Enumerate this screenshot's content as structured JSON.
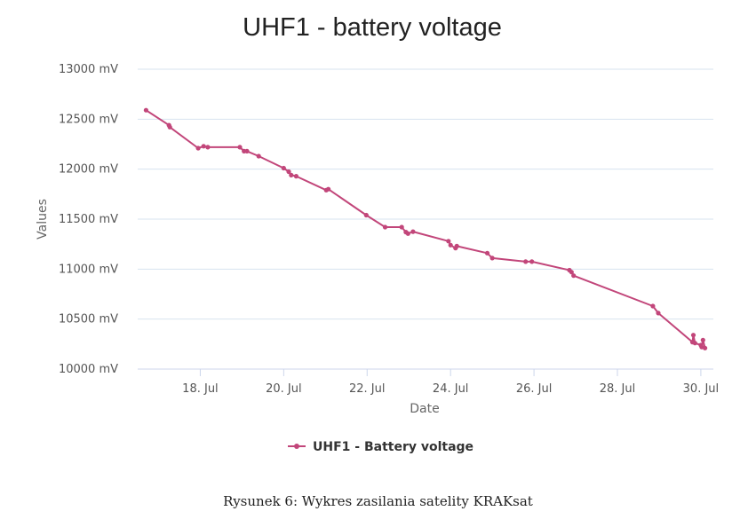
{
  "chart_data": {
    "type": "line",
    "title": "UHF1 - battery voltage",
    "xlabel": "Date",
    "ylabel": "Values",
    "ylim": [
      10000,
      13000
    ],
    "yticks": [
      10000,
      10500,
      11000,
      11500,
      12000,
      12500,
      13000
    ],
    "ytick_labels": [
      "10000 mV",
      "10500 mV",
      "11000 mV",
      "11500 mV",
      "12000 mV",
      "12500 mV",
      "13000 mV"
    ],
    "xlim": [
      16.5,
      30.3
    ],
    "xticks": [
      18,
      20,
      22,
      24,
      26,
      28,
      30
    ],
    "xtick_labels": [
      "18. Jul",
      "20. Jul",
      "22. Jul",
      "24. Jul",
      "26. Jul",
      "28. Jul",
      "30. Jul"
    ],
    "grid": true,
    "legend_position": "bottom-center",
    "series": [
      {
        "name": "UHF1 - Battery voltage",
        "color": "#c2467a",
        "points": [
          [
            16.7,
            12590
          ],
          [
            17.25,
            12440
          ],
          [
            17.27,
            12420
          ],
          [
            17.95,
            12210
          ],
          [
            18.08,
            12230
          ],
          [
            18.18,
            12220
          ],
          [
            18.95,
            12220
          ],
          [
            19.05,
            12180
          ],
          [
            19.12,
            12180
          ],
          [
            19.4,
            12130
          ],
          [
            20.0,
            12010
          ],
          [
            20.12,
            11975
          ],
          [
            20.18,
            11940
          ],
          [
            20.3,
            11930
          ],
          [
            21.02,
            11790
          ],
          [
            21.07,
            11800
          ],
          [
            21.98,
            11540
          ],
          [
            22.43,
            11420
          ],
          [
            22.83,
            11420
          ],
          [
            22.93,
            11370
          ],
          [
            22.98,
            11355
          ],
          [
            23.1,
            11375
          ],
          [
            23.95,
            11280
          ],
          [
            24.0,
            11240
          ],
          [
            24.12,
            11210
          ],
          [
            24.15,
            11230
          ],
          [
            24.88,
            11160
          ],
          [
            25.0,
            11110
          ],
          [
            25.8,
            11075
          ],
          [
            25.95,
            11075
          ],
          [
            26.85,
            10990
          ],
          [
            26.9,
            10970
          ],
          [
            26.95,
            10935
          ],
          [
            28.85,
            10630
          ],
          [
            28.98,
            10560
          ],
          [
            29.8,
            10270
          ],
          [
            29.82,
            10340
          ],
          [
            29.86,
            10260
          ],
          [
            30.0,
            10240
          ],
          [
            30.02,
            10220
          ],
          [
            30.05,
            10290
          ],
          [
            30.1,
            10210
          ]
        ]
      }
    ]
  },
  "caption": "Rysunek 6: Wykres zasilania satelity KRAKsat"
}
